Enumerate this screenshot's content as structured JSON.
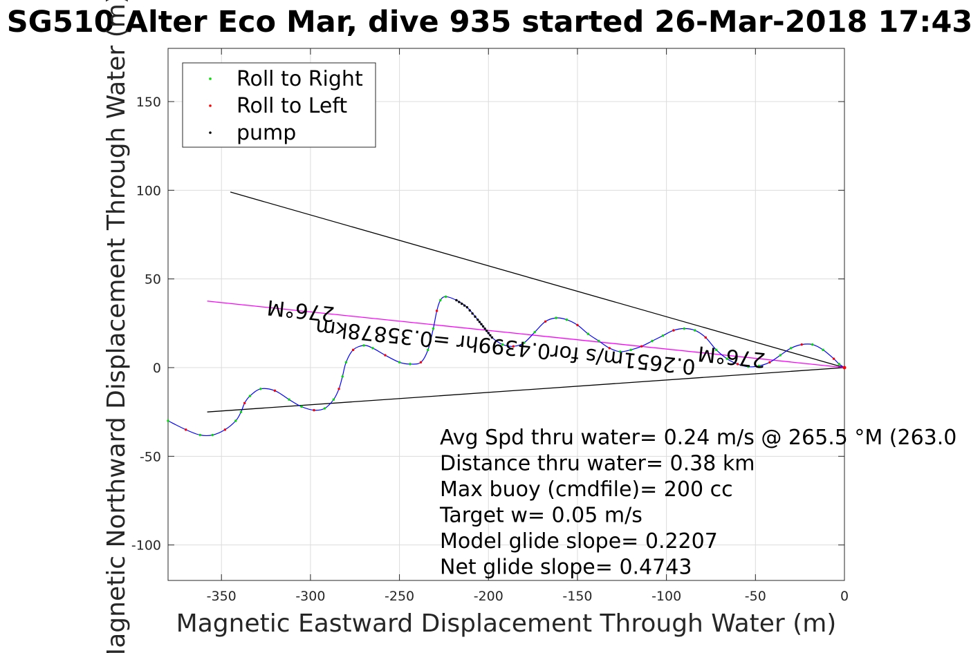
{
  "chart_data": {
    "type": "line",
    "title": "SG510 Alter Eco Mar, dive 935 started 26-Mar-2018 17:43",
    "xlabel": "Magnetic Eastward Displacement Through Water (m)",
    "ylabel": "Magnetic Northward Displacement Through Water (m)",
    "xlim": [
      -380,
      0
    ],
    "ylim": [
      -120,
      180
    ],
    "xticks": [
      -350,
      -300,
      -250,
      -200,
      -150,
      -100,
      -50,
      0
    ],
    "yticks": [
      -100,
      -50,
      0,
      50,
      100,
      150
    ],
    "xtick_labels": [
      "-350",
      "-300",
      "-250",
      "-200",
      "-150",
      "-100",
      "-50",
      "0"
    ],
    "ytick_labels": [
      "-100",
      "-50",
      "0",
      "50",
      "100",
      "150"
    ],
    "grid": true,
    "legend_position": "top-left",
    "legend": [
      {
        "label": "Roll to Right",
        "color": "#00dd00"
      },
      {
        "label": "Roll to Left",
        "color": "#ff0000"
      },
      {
        "label": "pump",
        "color": "#000000"
      }
    ],
    "track": {
      "color": "#0000ff",
      "x": [
        -380,
        -370,
        -362,
        -355,
        -348,
        -342,
        -339,
        -337,
        -334,
        -328,
        -320,
        -312,
        -305,
        -298,
        -292,
        -287,
        -284,
        -282,
        -280,
        -276,
        -270,
        -265,
        -258,
        -250,
        -244,
        -238,
        -234,
        -231,
        -229,
        -227,
        -224,
        -218,
        -212,
        -206,
        -202,
        -198,
        -192,
        -186,
        -180,
        -174,
        -168,
        -162,
        -156,
        -150,
        -144,
        -138,
        -132,
        -126,
        -120,
        -114,
        -108,
        -102,
        -96,
        -90,
        -84,
        -78,
        -72,
        -66,
        -60,
        -54,
        -48,
        -42,
        -36,
        -30,
        -24,
        -18,
        -12,
        -6,
        -3,
        0
      ],
      "y": [
        -30,
        -35,
        -38,
        -38,
        -35,
        -30,
        -25,
        -20,
        -16,
        -12,
        -13,
        -18,
        -22,
        -24,
        -23,
        -18,
        -12,
        -5,
        3,
        10,
        12.5,
        11,
        7,
        3,
        2,
        3,
        10,
        22,
        32,
        38,
        40,
        38,
        34,
        27,
        22,
        17,
        13,
        12,
        14,
        20,
        26,
        28,
        27,
        24,
        19,
        15,
        11,
        9,
        10,
        12,
        15,
        18,
        21,
        22,
        21,
        17,
        10,
        5,
        2,
        0.5,
        1,
        3,
        7,
        11,
        13,
        13,
        10,
        5,
        2,
        0
      ]
    },
    "lines": [
      {
        "name": "",
        "color": "#000000",
        "x": [
          -345,
          0
        ],
        "y": [
          99,
          0
        ]
      },
      {
        "name": "",
        "color": "#000000",
        "x": [
          -358,
          0
        ],
        "y": [
          -25,
          0
        ]
      },
      {
        "name": "",
        "color": "#ff00ff",
        "x": [
          -358,
          0
        ],
        "y": [
          37.5,
          0
        ]
      }
    ],
    "annotations": [
      {
        "text": "276°M",
        "x": -305,
        "y": 36,
        "rotation": 186
      },
      {
        "text": "0.2651m/s for0.4399hr =0.35878km",
        "x": -190,
        "y": 15.5,
        "rotation": 186
      },
      {
        "text": "276°M",
        "x": -63,
        "y": 10,
        "rotation": 186
      }
    ],
    "stats": [
      "Avg Spd thru water=  0.24 m/s @ 265.5 °M (263.0",
      "Distance thru water=  0.38 km",
      "Max buoy (cmdfile)= 200 cc",
      "Target w= 0.05 m/s",
      "Model glide slope= 0.2207",
      "Net glide slope= 0.4743"
    ]
  }
}
